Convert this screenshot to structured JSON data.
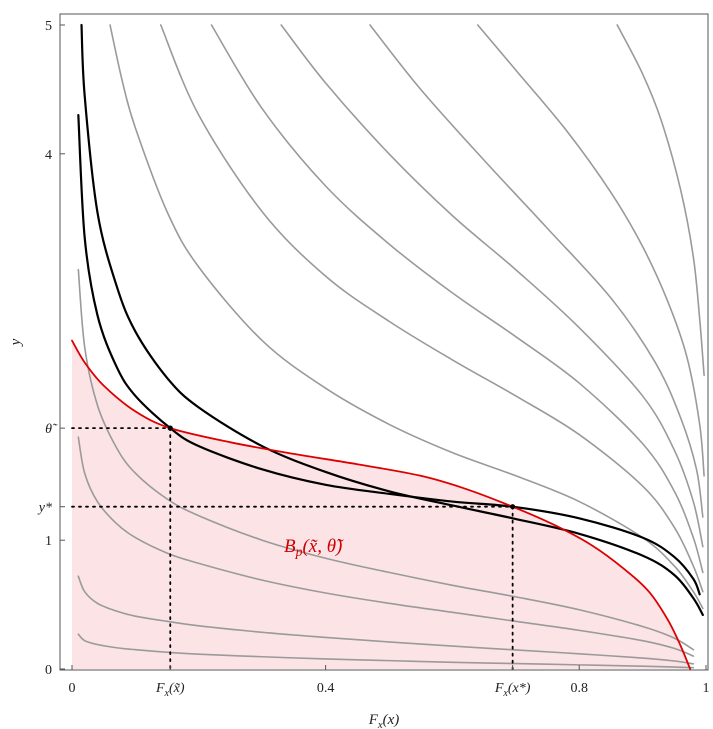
{
  "chart_data": {
    "type": "line",
    "xlabel": "F_x(x)",
    "ylabel": "y",
    "xlim": [
      0,
      1
    ],
    "ylim": [
      0,
      5
    ],
    "x_ticks": [
      {
        "value": 0,
        "label": "0"
      },
      {
        "value": 0.155,
        "label": "F_x(x̃)"
      },
      {
        "value": 0.4,
        "label": "0.4"
      },
      {
        "value": 0.695,
        "label": "F_x(x*)"
      },
      {
        "value": 0.8,
        "label": "0.8"
      },
      {
        "value": 1,
        "label": "1"
      }
    ],
    "y_ticks": [
      {
        "value": 0,
        "label": "0"
      },
      {
        "value": 1,
        "label": "1"
      },
      {
        "value": 1.26,
        "label": "y*"
      },
      {
        "value": 1.87,
        "label": "θ̃"
      },
      {
        "value": 4,
        "label": "4"
      },
      {
        "value": 5,
        "label": "5"
      }
    ],
    "region_label": "B_p(x̃, θ̃)",
    "colors": {
      "gray_curve": "#9a9a9a",
      "black_curve": "#000000",
      "red_curve": "#dd0000",
      "region_fill": "#fbe3e6",
      "region_label": "#d00000",
      "dotted": "#000000"
    },
    "reference_lines": [
      {
        "x": 0.155,
        "y": 1.87
      },
      {
        "x": 0.695,
        "y": 1.26
      }
    ],
    "highlight_points": [
      {
        "x": 0.155,
        "y": 1.87
      },
      {
        "x": 0.695,
        "y": 1.26
      }
    ],
    "series": [
      {
        "style": "gray",
        "x": [
          0.01,
          0.02,
          0.04,
          0.07,
          0.1,
          0.15,
          0.2,
          0.3,
          0.4,
          0.5,
          0.6,
          0.7,
          0.8,
          0.9,
          0.95,
          0.98
        ],
        "y": [
          0.27,
          0.22,
          0.19,
          0.165,
          0.15,
          0.13,
          0.115,
          0.095,
          0.078,
          0.065,
          0.052,
          0.042,
          0.032,
          0.022,
          0.015,
          0.01
        ]
      },
      {
        "style": "gray",
        "x": [
          0.01,
          0.02,
          0.04,
          0.07,
          0.1,
          0.15,
          0.2,
          0.3,
          0.4,
          0.5,
          0.6,
          0.7,
          0.8,
          0.9,
          0.95,
          0.98
        ],
        "y": [
          0.72,
          0.6,
          0.51,
          0.45,
          0.41,
          0.37,
          0.335,
          0.285,
          0.245,
          0.21,
          0.178,
          0.148,
          0.118,
          0.085,
          0.062,
          0.04
        ]
      },
      {
        "style": "gray",
        "x": [
          0.01,
          0.02,
          0.04,
          0.07,
          0.1,
          0.15,
          0.2,
          0.3,
          0.4,
          0.5,
          0.6,
          0.7,
          0.8,
          0.9,
          0.95,
          0.98
        ],
        "y": [
          1.8,
          1.52,
          1.3,
          1.13,
          1.02,
          0.9,
          0.82,
          0.69,
          0.59,
          0.51,
          0.44,
          0.37,
          0.3,
          0.22,
          0.16,
          0.1
        ]
      },
      {
        "style": "gray",
        "x": [
          0.01,
          0.02,
          0.04,
          0.07,
          0.1,
          0.15,
          0.2,
          0.3,
          0.4,
          0.5,
          0.6,
          0.7,
          0.8,
          0.9,
          0.95,
          0.98
        ],
        "y": [
          3.1,
          2.5,
          2.05,
          1.72,
          1.52,
          1.32,
          1.19,
          1.0,
          0.86,
          0.75,
          0.65,
          0.56,
          0.46,
          0.33,
          0.24,
          0.15
        ]
      },
      {
        "style": "black",
        "x": [
          0.01,
          0.02,
          0.04,
          0.07,
          0.1,
          0.155,
          0.2,
          0.3,
          0.4,
          0.5,
          0.6,
          0.695,
          0.8,
          0.9,
          0.95,
          0.98,
          0.99
        ],
        "y": [
          4.3,
          3.35,
          2.75,
          2.35,
          2.12,
          1.87,
          1.73,
          1.55,
          1.43,
          1.36,
          1.3,
          1.26,
          1.17,
          1.02,
          0.87,
          0.7,
          0.58
        ]
      },
      {
        "style": "black",
        "x": [
          0.015,
          0.02,
          0.04,
          0.07,
          0.1,
          0.15,
          0.2,
          0.3,
          0.4,
          0.5,
          0.6,
          0.695,
          0.8,
          0.9,
          0.95,
          0.98,
          0.995
        ],
        "y": [
          5.0,
          4.45,
          3.55,
          2.98,
          2.62,
          2.26,
          2.03,
          1.73,
          1.53,
          1.38,
          1.27,
          1.17,
          1.05,
          0.88,
          0.73,
          0.55,
          0.42
        ]
      },
      {
        "style": "gray",
        "x": [
          0.06,
          0.08,
          0.1,
          0.15,
          0.2,
          0.3,
          0.4,
          0.5,
          0.6,
          0.7,
          0.8,
          0.9,
          0.95,
          0.98,
          0.995
        ],
        "y": [
          5.0,
          4.55,
          4.2,
          3.55,
          3.12,
          2.55,
          2.18,
          1.9,
          1.68,
          1.5,
          1.3,
          1.02,
          0.8,
          0.6,
          0.47
        ]
      },
      {
        "style": "gray",
        "x": [
          0.14,
          0.2,
          0.3,
          0.4,
          0.5,
          0.6,
          0.7,
          0.8,
          0.9,
          0.95,
          0.98,
          0.995
        ],
        "y": [
          5.0,
          4.3,
          3.55,
          3.05,
          2.7,
          2.4,
          2.12,
          1.82,
          1.42,
          1.1,
          0.8,
          0.6
        ]
      },
      {
        "style": "gray",
        "x": [
          0.22,
          0.3,
          0.4,
          0.5,
          0.6,
          0.7,
          0.8,
          0.9,
          0.95,
          0.98,
          0.995
        ],
        "y": [
          5.0,
          4.35,
          3.75,
          3.3,
          2.92,
          2.58,
          2.22,
          1.75,
          1.38,
          1.02,
          0.75
        ]
      },
      {
        "style": "gray",
        "x": [
          0.33,
          0.4,
          0.5,
          0.6,
          0.7,
          0.8,
          0.9,
          0.95,
          0.98,
          0.995
        ],
        "y": [
          5.0,
          4.55,
          4.0,
          3.52,
          3.1,
          2.65,
          2.12,
          1.7,
          1.3,
          0.95
        ]
      },
      {
        "style": "gray",
        "x": [
          0.47,
          0.55,
          0.65,
          0.75,
          0.85,
          0.92,
          0.96,
          0.985,
          0.995
        ],
        "y": [
          5.0,
          4.5,
          3.95,
          3.42,
          2.88,
          2.38,
          1.95,
          1.55,
          1.18
        ]
      },
      {
        "style": "gray",
        "x": [
          0.64,
          0.7,
          0.78,
          0.85,
          0.9,
          0.94,
          0.97,
          0.99,
          0.997
        ],
        "y": [
          5.0,
          4.65,
          4.18,
          3.7,
          3.28,
          2.85,
          2.42,
          1.9,
          1.5
        ]
      },
      {
        "style": "gray",
        "x": [
          0.86,
          0.9,
          0.93,
          0.96,
          0.98,
          0.99,
          0.997
        ],
        "y": [
          5.0,
          4.62,
          4.25,
          3.72,
          3.2,
          2.72,
          2.28
        ]
      },
      {
        "style": "red",
        "x": [
          0.0,
          0.02,
          0.05,
          0.1,
          0.155,
          0.25,
          0.35,
          0.45,
          0.55,
          0.62,
          0.695,
          0.76,
          0.82,
          0.87,
          0.91,
          0.94,
          0.96,
          0.975
        ],
        "y": [
          2.55,
          2.38,
          2.2,
          2.0,
          1.87,
          1.76,
          1.67,
          1.59,
          1.5,
          1.4,
          1.26,
          1.12,
          0.96,
          0.78,
          0.6,
          0.38,
          0.18,
          0.0
        ]
      }
    ]
  }
}
